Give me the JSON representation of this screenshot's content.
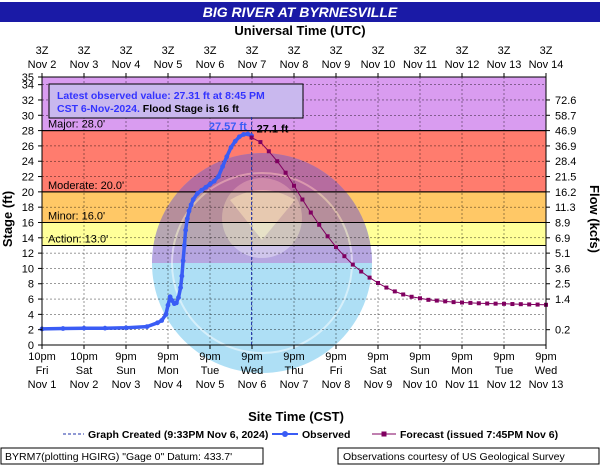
{
  "chart_data": {
    "type": "line",
    "title": "BIG RIVER AT BYRNESVILLE",
    "top_axis_title": "Universal Time (UTC)",
    "xlabel": "Site Time (CST)",
    "ylabel": "Stage (ft)",
    "y2label": "Flow (kcfs)",
    "ylim": [
      0,
      35
    ],
    "xlim_days": [
      0,
      12
    ],
    "grid": true,
    "y_ticks": [
      "0",
      "2",
      "4",
      "6",
      "8",
      "10",
      "12",
      "14",
      "16",
      "18",
      "20",
      "22",
      "24",
      "26",
      "28",
      "30",
      "32",
      "34",
      "35"
    ],
    "flow_ticks": [
      {
        "stage": 2,
        "label": "0.2"
      },
      {
        "stage": 6,
        "label": "1.4"
      },
      {
        "stage": 8,
        "label": "2.5"
      },
      {
        "stage": 10,
        "label": "3.6"
      },
      {
        "stage": 12,
        "label": "5.1"
      },
      {
        "stage": 14,
        "label": "6.9"
      },
      {
        "stage": 16,
        "label": "8.9"
      },
      {
        "stage": 18,
        "label": "11.3"
      },
      {
        "stage": 20,
        "label": "16.2"
      },
      {
        "stage": 22,
        "label": "21.5"
      },
      {
        "stage": 24,
        "label": "28.4"
      },
      {
        "stage": 26,
        "label": "36.9"
      },
      {
        "stage": 28,
        "label": "46.9"
      },
      {
        "stage": 30,
        "label": "58.7"
      },
      {
        "stage": 32,
        "label": "72.6"
      }
    ],
    "bottom_ticks": [
      {
        "t": 0,
        "l1": "10pm",
        "l2": "Fri",
        "l3": "Nov 1"
      },
      {
        "t": 1,
        "l1": "10pm",
        "l2": "Sat",
        "l3": "Nov 2"
      },
      {
        "t": 2,
        "l1": "9pm",
        "l2": "Sun",
        "l3": "Nov 3"
      },
      {
        "t": 3,
        "l1": "9pm",
        "l2": "Mon",
        "l3": "Nov 4"
      },
      {
        "t": 4,
        "l1": "9pm",
        "l2": "Tue",
        "l3": "Nov 5"
      },
      {
        "t": 5,
        "l1": "9pm",
        "l2": "Wed",
        "l3": "Nov 6"
      },
      {
        "t": 6,
        "l1": "9pm",
        "l2": "Thu",
        "l3": "Nov 7"
      },
      {
        "t": 7,
        "l1": "9pm",
        "l2": "Fri",
        "l3": "Nov 8"
      },
      {
        "t": 8,
        "l1": "9pm",
        "l2": "Sat",
        "l3": "Nov 9"
      },
      {
        "t": 9,
        "l1": "9pm",
        "l2": "Sun",
        "l3": "Nov 10"
      },
      {
        "t": 10,
        "l1": "9pm",
        "l2": "Mon",
        "l3": "Nov 11"
      },
      {
        "t": 11,
        "l1": "9pm",
        "l2": "Tue",
        "l3": "Nov 12"
      },
      {
        "t": 12,
        "l1": "9pm",
        "l2": "Wed",
        "l3": "Nov 13"
      }
    ],
    "top_ticks": [
      {
        "t": 0,
        "l1": "3Z",
        "l2": "Nov 2"
      },
      {
        "t": 1,
        "l1": "3Z",
        "l2": "Nov 3"
      },
      {
        "t": 2,
        "l1": "3Z",
        "l2": "Nov 4"
      },
      {
        "t": 3,
        "l1": "3Z",
        "l2": "Nov 5"
      },
      {
        "t": 4,
        "l1": "3Z",
        "l2": "Nov 6"
      },
      {
        "t": 5,
        "l1": "3Z",
        "l2": "Nov 7"
      },
      {
        "t": 6,
        "l1": "3Z",
        "l2": "Nov 8"
      },
      {
        "t": 7,
        "l1": "3Z",
        "l2": "Nov 9"
      },
      {
        "t": 8,
        "l1": "3Z",
        "l2": "Nov 10"
      },
      {
        "t": 9,
        "l1": "3Z",
        "l2": "Nov 11"
      },
      {
        "t": 10,
        "l1": "3Z",
        "l2": "Nov 12"
      },
      {
        "t": 11,
        "l1": "3Z",
        "l2": "Nov 13"
      },
      {
        "t": 12,
        "l1": "3Z",
        "l2": "Nov 14"
      }
    ],
    "flood_categories": [
      {
        "name": "Action",
        "label": "Action: 13.0'",
        "value": 13,
        "color": "#ffff99"
      },
      {
        "name": "Minor",
        "label": "Minor: 16.0'",
        "value": 16,
        "color": "#ffc866"
      },
      {
        "name": "Moderate",
        "label": "Moderate: 20.0'",
        "value": 20,
        "color": "#ff7c6e"
      },
      {
        "name": "Major",
        "label": "Major: 28.0'",
        "value": 28,
        "color": "#d99cf0"
      }
    ],
    "info_box": {
      "line1": "Latest observed value: 27.31 ft at 8:45 PM",
      "line2a": "CST 6-Nov-2024.",
      "line2b": " Flood Stage is 16 ft"
    },
    "peak_observed_label": "27.57 ft",
    "peak_forecast_label": "27.1 ft",
    "created_time": 4.99,
    "series": [
      {
        "name": "Observed",
        "color": "#3a5cf5",
        "points": [
          [
            0,
            2.1
          ],
          [
            0.5,
            2.15
          ],
          [
            1,
            2.2
          ],
          [
            1.5,
            2.2
          ],
          [
            2,
            2.25
          ],
          [
            2.5,
            2.4
          ],
          [
            2.75,
            2.9
          ],
          [
            2.85,
            3.2
          ],
          [
            2.95,
            4.0
          ],
          [
            3.0,
            5.2
          ],
          [
            3.05,
            6.3
          ],
          [
            3.1,
            5.8
          ],
          [
            3.15,
            5.4
          ],
          [
            3.2,
            5.5
          ],
          [
            3.25,
            6.2
          ],
          [
            3.3,
            7.5
          ],
          [
            3.33,
            9.0
          ],
          [
            3.36,
            11.0
          ],
          [
            3.39,
            13.0
          ],
          [
            3.42,
            15.0
          ],
          [
            3.46,
            16.5
          ],
          [
            3.5,
            17.5
          ],
          [
            3.55,
            18.3
          ],
          [
            3.6,
            19.0
          ],
          [
            3.7,
            19.8
          ],
          [
            3.8,
            20.2
          ],
          [
            3.9,
            20.6
          ],
          [
            4.0,
            21.0
          ],
          [
            4.1,
            21.4
          ],
          [
            4.2,
            22.0
          ],
          [
            4.3,
            23.3
          ],
          [
            4.4,
            24.6
          ],
          [
            4.5,
            25.8
          ],
          [
            4.6,
            26.6
          ],
          [
            4.7,
            27.2
          ],
          [
            4.8,
            27.5
          ],
          [
            4.9,
            27.57
          ],
          [
            4.99,
            27.31
          ]
        ]
      },
      {
        "name": "Forecast (issued 7:45PM Nov 6)",
        "color": "#800060",
        "points": [
          [
            4.99,
            27.1
          ],
          [
            5.2,
            26.5
          ],
          [
            5.4,
            25.3
          ],
          [
            5.6,
            24.0
          ],
          [
            5.8,
            22.5
          ],
          [
            6.0,
            20.8
          ],
          [
            6.2,
            19.0
          ],
          [
            6.4,
            17.3
          ],
          [
            6.6,
            15.7
          ],
          [
            6.8,
            14.2
          ],
          [
            7.0,
            12.8
          ],
          [
            7.2,
            11.6
          ],
          [
            7.4,
            10.5
          ],
          [
            7.6,
            9.6
          ],
          [
            7.8,
            8.8
          ],
          [
            8.0,
            8.1
          ],
          [
            8.2,
            7.5
          ],
          [
            8.4,
            7.0
          ],
          [
            8.6,
            6.6
          ],
          [
            8.8,
            6.3
          ],
          [
            9.0,
            6.1
          ],
          [
            9.2,
            5.9
          ],
          [
            9.4,
            5.8
          ],
          [
            9.6,
            5.7
          ],
          [
            9.8,
            5.6
          ],
          [
            10.0,
            5.55
          ],
          [
            10.2,
            5.5
          ],
          [
            10.4,
            5.45
          ],
          [
            10.6,
            5.42
          ],
          [
            10.8,
            5.4
          ],
          [
            11.0,
            5.38
          ],
          [
            11.2,
            5.35
          ],
          [
            11.4,
            5.33
          ],
          [
            11.6,
            5.3
          ],
          [
            11.8,
            5.28
          ],
          [
            12.0,
            5.25
          ]
        ]
      }
    ]
  },
  "legend": {
    "created": "Graph Created (9:33PM Nov 6, 2024)",
    "observed": "Observed",
    "forecast": "Forecast (issued 7:45PM Nov 6)"
  },
  "footer": {
    "left": "BYRM7(plotting HGIRG) \"Gage 0\" Datum: 433.7'",
    "right": "Observations courtesy of US Geological Survey"
  },
  "colors": {
    "title_bar": "#1a1aa6",
    "info_box_bg": "#c9b8ee",
    "info_text": "#3333ff",
    "grid": "#000000"
  }
}
